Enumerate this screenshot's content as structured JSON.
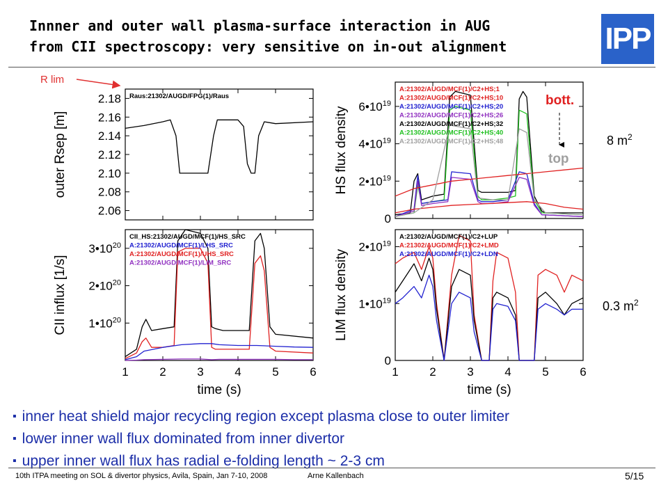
{
  "slide": {
    "title_line1": "Innner and outer wall plasma-surface interaction in AUG",
    "title_line2": "from CII spectroscopy: very sensitive on in-out alignment",
    "logo_text": "IPP",
    "rlim_label": "R lim",
    "area_top_value": "8 m",
    "area_top_exp": "2",
    "area_bottom_value": "0.3 m",
    "area_bottom_exp": "2",
    "bullets": [
      "inner heat shield major recycling region except plasma close to outer limiter",
      "lower inner wall flux dominated from inner divertor",
      "upper inner wall flux has radial e-folding length ~ 2-3 cm"
    ],
    "footer_left": "10th ITPA meeting on SOL & divertor physics,  Avila,  Spain,  Jan 7-10, 2008",
    "footer_author": "Arne Kallenbach",
    "page_number": "5/15",
    "colors": {
      "bullet_text": "#1c2ea8",
      "logo": "#2a62c9",
      "rlim": "#e03030"
    }
  },
  "chart_data": [
    {
      "type": "line",
      "ylabel": "outer Rsep [m]",
      "xlabel": "",
      "xlim": [
        1,
        6
      ],
      "ylim": [
        2.05,
        2.19
      ],
      "x_ticks": [],
      "y_ticks": [
        "2.06",
        "2.08",
        "2.10",
        "2.12",
        "2.14",
        "2.16",
        "2.18"
      ],
      "y_tick_values": [
        2.06,
        2.08,
        2.1,
        2.12,
        2.14,
        2.16,
        2.18
      ],
      "legend": [
        "Raus:21302/AUGD/FPG(1)/Raus"
      ],
      "series": [
        {
          "color": "#000000",
          "x": [
            1.0,
            1.5,
            2.0,
            2.2,
            2.35,
            2.45,
            2.6,
            3.0,
            3.2,
            3.35,
            3.45,
            3.6,
            4.0,
            4.15,
            4.25,
            4.35,
            4.45,
            4.55,
            4.7,
            5.0,
            6.0
          ],
          "y": [
            2.148,
            2.151,
            2.155,
            2.157,
            2.14,
            2.1,
            2.1,
            2.1,
            2.1,
            2.14,
            2.157,
            2.157,
            2.157,
            2.15,
            2.11,
            2.1,
            2.1,
            2.14,
            2.155,
            2.153,
            2.155
          ]
        }
      ]
    },
    {
      "type": "line",
      "ylabel": "HS flux density",
      "xlabel": "",
      "xlim": [
        1,
        6
      ],
      "ylim": [
        0,
        7.3e+19
      ],
      "x_ticks": [],
      "y_ticks": [
        "0",
        "2•10",
        "4•10",
        "6•10"
      ],
      "y_tick_exp": [
        "",
        "19",
        "19",
        "19"
      ],
      "y_tick_values": [
        0,
        2e+19,
        4e+19,
        6e+19
      ],
      "legend": [
        "A:21302/AUGD/MCF(1)/C2+HS;1",
        "A:21302/AUGD/MCF(1)/C2+HS;10",
        "A:21302/AUGD/MCF(1)/C2+HS;20",
        "A:21302/AUGD/MCF(1)/C2+HS;26",
        "A:21302/AUGD/MCF(1)/C2+HS;32",
        "A:21302/AUGD/MCF(1)/C2+HS;40",
        "A:21302/AUGD/MCF(1)/C2+HS;48"
      ],
      "legend_colors": [
        "#e02020",
        "#e02020",
        "#2020d0",
        "#9030c0",
        "#000000",
        "#20c020",
        "#a0a0a0"
      ],
      "annotation_top": "bott.",
      "annotation_bottom": "top",
      "series": [
        {
          "color": "#000000",
          "x": [
            1.0,
            1.4,
            1.5,
            1.6,
            1.7,
            2.0,
            2.3,
            2.45,
            2.6,
            3.0,
            3.2,
            3.3,
            3.4,
            3.6,
            4.0,
            4.2,
            4.3,
            4.4,
            4.5,
            4.7,
            4.9,
            5.0,
            6.0
          ],
          "y": [
            2e+18,
            3e+18,
            2e+19,
            2.4e+19,
            1e+19,
            1.2e+19,
            1.3e+19,
            6.5e+19,
            6.8e+19,
            6.6e+19,
            1.5e+19,
            1.4e+19,
            1.4e+19,
            1.4e+19,
            1.4e+19,
            1.5e+19,
            6.4e+19,
            6.8e+19,
            6.5e+19,
            1.2e+19,
            4e+18,
            3e+18,
            3e+18
          ]
        },
        {
          "color": "#20c020",
          "x": [
            1.0,
            1.5,
            1.6,
            1.7,
            2.0,
            2.3,
            2.45,
            2.6,
            3.0,
            3.2,
            3.3,
            3.6,
            4.0,
            4.2,
            4.3,
            4.5,
            4.7,
            4.9,
            6.0
          ],
          "y": [
            1e+18,
            3e+18,
            1.8e+19,
            8e+18,
            9e+18,
            1e+19,
            5.8e+19,
            6e+19,
            5.8e+19,
            1.2e+19,
            1e+19,
            1e+19,
            1.1e+19,
            1.2e+19,
            5.8e+19,
            5.6e+19,
            1e+19,
            3e+18,
            2e+18
          ]
        },
        {
          "color": "#2020d0",
          "x": [
            1.0,
            1.5,
            1.6,
            1.7,
            2.0,
            2.4,
            2.5,
            3.0,
            3.2,
            3.3,
            3.6,
            4.0,
            4.3,
            4.5,
            4.7,
            4.9,
            6.0
          ],
          "y": [
            1e+18,
            5e+18,
            2.3e+19,
            8e+18,
            9e+18,
            1e+19,
            2.5e+19,
            2.4e+19,
            1e+19,
            9e+18,
            9e+18,
            1e+19,
            2.5e+19,
            2.4e+19,
            8e+18,
            2e+18,
            1e+18
          ]
        },
        {
          "color": "#9030c0",
          "x": [
            1.0,
            1.5,
            1.6,
            1.7,
            2.0,
            2.4,
            2.5,
            3.0,
            3.2,
            3.3,
            3.6,
            4.0,
            4.3,
            4.5,
            4.7,
            4.9,
            6.0
          ],
          "y": [
            1e+18,
            4e+18,
            2e+19,
            7e+18,
            8e+18,
            9e+18,
            2.2e+19,
            2.1e+19,
            9e+18,
            8e+18,
            8e+18,
            9e+18,
            2.2e+19,
            2.1e+19,
            7e+18,
            2e+18,
            1e+18
          ]
        },
        {
          "color": "#e02020",
          "x": [
            1.0,
            1.5,
            2.0,
            2.5,
            3.0,
            3.5,
            4.0,
            4.5,
            5.0,
            5.5,
            6.0
          ],
          "y": [
            1.2e+19,
            1.6e+19,
            1.8e+19,
            2e+19,
            2.1e+19,
            2.2e+19,
            2.3e+19,
            2.4e+19,
            2.5e+19,
            2.6e+19,
            2.7e+19
          ]
        },
        {
          "color": "#e02020",
          "x": [
            1.0,
            1.5,
            2.0,
            2.5,
            3.0,
            3.5,
            4.0,
            4.5,
            5.0,
            5.5,
            6.0
          ],
          "y": [
            3e+18,
            5e+18,
            6e+18,
            7e+18,
            7.5e+18,
            8e+18,
            8.5e+18,
            9e+18,
            8e+18,
            6e+18,
            5e+18
          ]
        },
        {
          "color": "#a0a0a0",
          "x": [
            1.0,
            1.5,
            2.0,
            2.45,
            3.0,
            3.2,
            3.6,
            4.0,
            4.3,
            4.5,
            4.7,
            5.0,
            6.0
          ],
          "y": [
            1e+18,
            3e+18,
            1e+19,
            5e+19,
            4.8e+19,
            1.1e+19,
            1e+19,
            1e+19,
            4.8e+19,
            4.6e+19,
            1e+19,
            3e+18,
            2e+18
          ]
        }
      ]
    },
    {
      "type": "line",
      "ylabel": "CII influx [1/s]",
      "xlabel": "time (s)",
      "xlim": [
        1,
        6
      ],
      "ylim": [
        0,
        3.5e+20
      ],
      "x_ticks": [
        "1",
        "2",
        "3",
        "4",
        "5",
        "6"
      ],
      "x_tick_values": [
        1,
        2,
        3,
        4,
        5,
        6
      ],
      "y_ticks": [
        "1•10",
        "2•10",
        "3•10"
      ],
      "y_tick_exp": [
        "20",
        "20",
        "20"
      ],
      "y_tick_values": [
        1e+20,
        2e+20,
        3e+20
      ],
      "legend": [
        "CII_HS:21302/AUGD/MCF(1)/HS_SRC",
        "A:21302/AUGD/MCF(1)/LHS_SRC",
        "A:21302/AUGD/MCF(1)/UHS_SRC",
        "A:21302/AUGD/MCF(1)/LIM_SRC"
      ],
      "legend_colors": [
        "#000000",
        "#2020d0",
        "#e02020",
        "#9030c0"
      ],
      "series": [
        {
          "color": "#000000",
          "x": [
            1.0,
            1.3,
            1.45,
            1.55,
            1.7,
            2.0,
            2.3,
            2.4,
            2.6,
            3.0,
            3.2,
            3.3,
            3.4,
            3.6,
            4.0,
            4.3,
            4.45,
            4.6,
            4.7,
            4.85,
            5.0,
            6.0
          ],
          "y": [
            1e+19,
            3e+19,
            9e+19,
            1.1e+20,
            8e+19,
            8.5e+19,
            9e+19,
            3.2e+20,
            3.5e+20,
            3.4e+20,
            3e+20,
            9e+19,
            8.5e+19,
            8e+19,
            8e+19,
            8e+19,
            3.2e+20,
            3.4e+20,
            3e+20,
            9e+19,
            7e+19,
            6e+19
          ]
        },
        {
          "color": "#e02020",
          "x": [
            1.0,
            1.3,
            1.45,
            1.55,
            1.7,
            2.0,
            2.3,
            2.4,
            2.6,
            3.0,
            3.2,
            3.3,
            3.4,
            3.6,
            4.0,
            4.3,
            4.45,
            4.6,
            4.7,
            4.85,
            5.0,
            6.0
          ],
          "y": [
            5e+18,
            2e+19,
            5e+19,
            6e+19,
            3.5e+19,
            3.5e+19,
            4e+19,
            2.9e+20,
            3e+20,
            3e+20,
            2.6e+20,
            3.5e+19,
            3e+19,
            3e+19,
            3e+19,
            3e+19,
            2.6e+20,
            2.8e+20,
            2.4e+20,
            3.5e+19,
            2.5e+19,
            2e+19
          ]
        },
        {
          "color": "#2020d0",
          "x": [
            1.0,
            1.3,
            1.5,
            2.0,
            2.5,
            3.0,
            3.3,
            3.5,
            4.0,
            4.5,
            5.0,
            5.5,
            6.0
          ],
          "y": [
            2e+18,
            1e+19,
            2.5e+19,
            3.5e+19,
            4.2e+19,
            4.5e+19,
            4.5e+19,
            4.2e+19,
            4e+19,
            4e+19,
            3.8e+19,
            3.6e+19,
            3.5e+19
          ]
        },
        {
          "color": "#9030c0",
          "x": [
            1.0,
            1.3,
            1.5,
            2.0,
            2.5,
            3.0,
            3.3,
            3.5,
            4.0,
            4.5,
            5.0,
            5.5,
            6.0
          ],
          "y": [
            0.0,
            1e+18,
            2e+18,
            3e+18,
            4e+18,
            4e+18,
            2e+18,
            3e+18,
            3e+18,
            3e+18,
            3e+18,
            2e+18,
            2e+18
          ]
        }
      ]
    },
    {
      "type": "line",
      "ylabel": "LIM flux density",
      "xlabel": "time (s)",
      "xlim": [
        1,
        6
      ],
      "ylim": [
        0,
        2.3e+19
      ],
      "x_ticks": [
        "1",
        "2",
        "3",
        "4",
        "5",
        "6"
      ],
      "x_tick_values": [
        1,
        2,
        3,
        4,
        5,
        6
      ],
      "y_ticks": [
        "0",
        "1•10",
        "2•10"
      ],
      "y_tick_exp": [
        "",
        "19",
        "19"
      ],
      "y_tick_values": [
        0,
        1e+19,
        2e+19
      ],
      "legend": [
        "A:21302/AUGD/MCF(1)/C2+LUP",
        "A:21302/AUGD/MCF(1)/C2+LMD",
        "A:21302/AUGD/MCF(1)/C2+LDN"
      ],
      "legend_colors": [
        "#000000",
        "#e02020",
        "#2020d0"
      ],
      "series": [
        {
          "color": "#e02020",
          "x": [
            1.0,
            1.2,
            1.5,
            1.7,
            1.9,
            2.0,
            2.1,
            2.3,
            2.5,
            2.7,
            3.0,
            3.1,
            3.3,
            3.5,
            3.6,
            3.7,
            4.0,
            4.2,
            4.3,
            4.5,
            4.7,
            4.8,
            5.0,
            5.3,
            5.5,
            5.7,
            6.0
          ],
          "y": [
            1.7e+19,
            1.8e+19,
            1.9e+19,
            1.6e+19,
            2e+19,
            1.8e+19,
            1e+19,
            0.0,
            1.5e+19,
            2.2e+19,
            2.1e+19,
            8e+18,
            0.0,
            0.0,
            1.4e+19,
            1.9e+19,
            1.8e+19,
            1.2e+19,
            0.0,
            0.0,
            0.0,
            1.5e+19,
            1.6e+19,
            1.5e+19,
            1.2e+19,
            1.5e+19,
            1.4e+19
          ]
        },
        {
          "color": "#000000",
          "x": [
            1.0,
            1.2,
            1.5,
            1.7,
            1.9,
            2.0,
            2.1,
            2.3,
            2.5,
            2.7,
            3.0,
            3.1,
            3.3,
            3.5,
            3.6,
            3.7,
            4.0,
            4.2,
            4.3,
            4.5,
            4.7,
            4.8,
            5.0,
            5.3,
            5.5,
            5.7,
            6.0
          ],
          "y": [
            1.2e+19,
            1.4e+19,
            1.7e+19,
            1.4e+19,
            1.8e+19,
            1.6e+19,
            9e+18,
            0.0,
            1.3e+19,
            1.6e+19,
            1.5e+19,
            7e+18,
            0.0,
            0.0,
            1.1e+19,
            1.2e+19,
            1.1e+19,
            8e+18,
            0.0,
            0.0,
            0.0,
            1.1e+19,
            1.2e+19,
            1e+19,
            8e+18,
            1e+19,
            1.1e+19
          ]
        },
        {
          "color": "#2020d0",
          "x": [
            1.0,
            1.2,
            1.5,
            1.7,
            1.9,
            2.0,
            2.1,
            2.3,
            2.5,
            2.7,
            3.0,
            3.1,
            3.3,
            3.5,
            3.6,
            3.7,
            4.0,
            4.2,
            4.3,
            4.5,
            4.7,
            4.8,
            5.0,
            5.3,
            5.5,
            5.7,
            6.0
          ],
          "y": [
            1e+19,
            1.1e+19,
            1.3e+19,
            1.1e+19,
            1.5e+19,
            1.3e+19,
            7e+18,
            0.0,
            1e+19,
            1.2e+19,
            1.1e+19,
            5e+18,
            0.0,
            0.0,
            9e+18,
            1e+19,
            9.5e+18,
            7e+18,
            0.0,
            0.0,
            0.0,
            9e+18,
            1e+19,
            9e+18,
            8e+18,
            9e+18,
            9e+18
          ]
        }
      ]
    }
  ]
}
